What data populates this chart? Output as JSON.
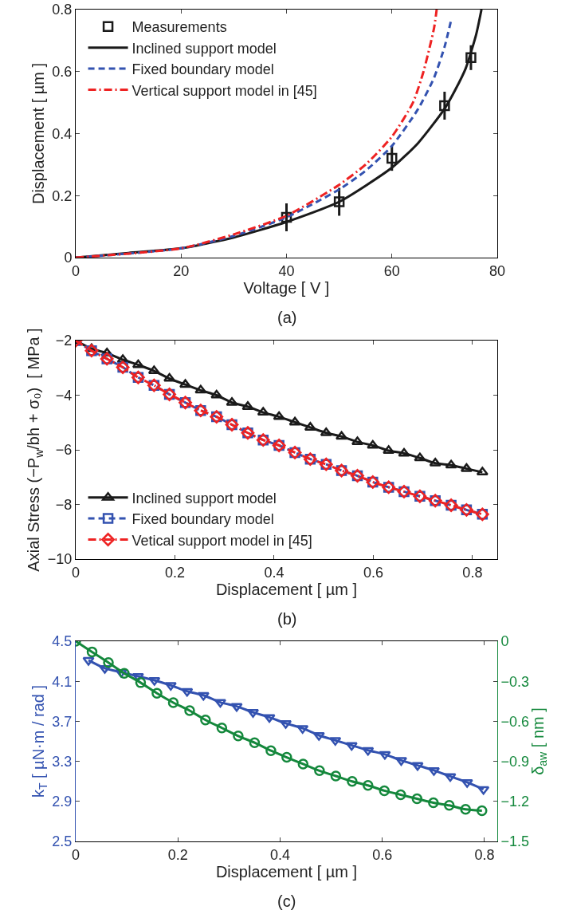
{
  "chart_data": [
    {
      "type": "line",
      "xlabel": "Voltage [ V ]",
      "ylabel": "Displacement [ µm ]",
      "annotations": [
        "(a)"
      ],
      "xlim": [
        0,
        80
      ],
      "ylim": [
        0,
        0.8
      ],
      "xticks": [
        0,
        20,
        40,
        60,
        80
      ],
      "yticks": [
        0,
        0.2,
        0.4,
        0.6,
        0.8
      ],
      "legend": "top left",
      "series": [
        {
          "name": "Measurements",
          "type": "scatter",
          "marker": "square",
          "color": "#1a1a1a",
          "x": [
            40,
            50,
            60,
            70,
            75
          ],
          "values": [
            0.13,
            0.18,
            0.32,
            0.49,
            0.645
          ],
          "errors": [
            0.045,
            0.045,
            0.04,
            0.045,
            0.04
          ]
        },
        {
          "name": "Inclined support model",
          "color": "#1a1a1a",
          "line_style": "solid",
          "x": [
            0,
            10,
            20,
            30,
            40,
            50,
            60,
            65,
            70,
            72,
            74,
            76,
            77
          ],
          "values": [
            0,
            0.015,
            0.03,
            0.065,
            0.115,
            0.18,
            0.29,
            0.37,
            0.48,
            0.54,
            0.61,
            0.72,
            0.8
          ]
        },
        {
          "name": "Fixed boundary model",
          "color": "#3352b0",
          "line_style": "dashed",
          "x": [
            0,
            20,
            30,
            40,
            50,
            55,
            60,
            65,
            68,
            70,
            71.3
          ],
          "values": [
            0,
            0.03,
            0.07,
            0.13,
            0.22,
            0.28,
            0.36,
            0.48,
            0.58,
            0.68,
            0.77
          ]
        },
        {
          "name": "Vertical support model in [45]",
          "color": "#ee2222",
          "line_style": "dashdot",
          "x": [
            0,
            20,
            30,
            40,
            50,
            55,
            60,
            64,
            66,
            68,
            68.5
          ],
          "values": [
            0,
            0.03,
            0.075,
            0.135,
            0.235,
            0.3,
            0.39,
            0.5,
            0.6,
            0.74,
            0.8
          ]
        }
      ]
    },
    {
      "type": "line",
      "xlabel": "Displacement [ µm ]",
      "ylabel": "Axial Stress (−P$_{w}$/bh + σ₀)  [ MPa ]",
      "annotations": [
        "(b)"
      ],
      "xlim": [
        0,
        0.85
      ],
      "ylim": [
        -10,
        -2
      ],
      "xticks": [
        0,
        0.2,
        0.4,
        0.6,
        0.8
      ],
      "yticks": [
        -10,
        -8,
        -6,
        -4,
        -2
      ],
      "legend": "bottom left",
      "x": [
        0,
        0.032,
        0.063,
        0.095,
        0.126,
        0.158,
        0.189,
        0.221,
        0.252,
        0.284,
        0.315,
        0.347,
        0.378,
        0.41,
        0.442,
        0.473,
        0.505,
        0.536,
        0.568,
        0.599,
        0.631,
        0.662,
        0.694,
        0.725,
        0.757,
        0.788,
        0.82
      ],
      "series": [
        {
          "name": "Inclined support model",
          "color": "#1a1a1a",
          "marker": "triangle",
          "line_style": "solid",
          "values": [
            -2.0,
            -2.3,
            -2.46,
            -2.7,
            -2.89,
            -3.11,
            -3.39,
            -3.61,
            -3.82,
            -4.0,
            -4.27,
            -4.42,
            -4.63,
            -4.79,
            -4.99,
            -5.18,
            -5.38,
            -5.51,
            -5.71,
            -5.84,
            -6.03,
            -6.13,
            -6.3,
            -6.49,
            -6.56,
            -6.69,
            -6.82
          ]
        },
        {
          "name": "Fixed boundary model",
          "color": "#3352b0",
          "marker": "square",
          "line_style": "dashed",
          "values": [
            -2.0,
            -2.37,
            -2.67,
            -2.98,
            -3.35,
            -3.64,
            -3.97,
            -4.27,
            -4.56,
            -4.79,
            -5.08,
            -5.38,
            -5.64,
            -5.84,
            -6.1,
            -6.34,
            -6.53,
            -6.76,
            -6.95,
            -7.18,
            -7.37,
            -7.53,
            -7.7,
            -7.86,
            -8.03,
            -8.2,
            -8.36
          ]
        },
        {
          "name": "Vetical support model in [45]",
          "color": "#ee2222",
          "marker": "diamond",
          "line_style": "dashdot",
          "values": [
            -2.0,
            -2.37,
            -2.67,
            -2.98,
            -3.35,
            -3.64,
            -3.97,
            -4.27,
            -4.56,
            -4.79,
            -5.08,
            -5.38,
            -5.64,
            -5.84,
            -6.1,
            -6.34,
            -6.53,
            -6.76,
            -6.95,
            -7.18,
            -7.37,
            -7.53,
            -7.7,
            -7.86,
            -8.03,
            -8.2,
            -8.36
          ]
        }
      ]
    },
    {
      "type": "line",
      "xlabel": "Displacement [ µm ]",
      "ylabel": "k$_{T}$ [ µN·m / rad ]",
      "y2label": "δ$_{aw}$ [ nm ]",
      "annotations": [
        "(c)"
      ],
      "xlim": [
        0,
        0.825
      ],
      "ylim": [
        2.5,
        4.5
      ],
      "y2lim": [
        -1.5,
        0
      ],
      "xticks": [
        0,
        0.2,
        0.4,
        0.6,
        0.8
      ],
      "yticks": [
        2.5,
        2.9,
        3.3,
        3.7,
        4.1,
        4.5
      ],
      "y2ticks": [
        -1.5,
        -1.2,
        -0.9,
        -0.6,
        -0.3,
        0
      ],
      "series": [
        {
          "color": "#3352b0",
          "marker": "triangle-down",
          "line_style": "solid",
          "x": [
            0.025,
            0.057,
            0.089,
            0.122,
            0.154,
            0.186,
            0.218,
            0.25,
            0.283,
            0.315,
            0.347,
            0.379,
            0.411,
            0.444,
            0.476,
            0.508,
            0.54,
            0.572,
            0.605,
            0.637,
            0.669,
            0.701,
            0.733,
            0.766,
            0.798
          ],
          "values": [
            4.31,
            4.23,
            4.19,
            4.15,
            4.11,
            4.06,
            4.0,
            3.96,
            3.89,
            3.85,
            3.79,
            3.74,
            3.68,
            3.63,
            3.56,
            3.51,
            3.46,
            3.41,
            3.37,
            3.31,
            3.26,
            3.21,
            3.15,
            3.09,
            3.02
          ]
        },
        {
          "color": "#14883c",
          "marker": "circle",
          "line_style": "solid",
          "axis": "y2",
          "x": [
            0,
            0.032,
            0.064,
            0.095,
            0.127,
            0.159,
            0.191,
            0.223,
            0.254,
            0.286,
            0.318,
            0.35,
            0.382,
            0.413,
            0.445,
            0.477,
            0.509,
            0.541,
            0.572,
            0.604,
            0.636,
            0.668,
            0.7,
            0.731,
            0.763,
            0.795
          ],
          "values": [
            0,
            -0.08,
            -0.16,
            -0.24,
            -0.31,
            -0.39,
            -0.46,
            -0.52,
            -0.59,
            -0.65,
            -0.71,
            -0.76,
            -0.82,
            -0.87,
            -0.92,
            -0.97,
            -1.01,
            -1.05,
            -1.08,
            -1.12,
            -1.15,
            -1.18,
            -1.21,
            -1.23,
            -1.26,
            -1.27
          ]
        }
      ]
    }
  ]
}
